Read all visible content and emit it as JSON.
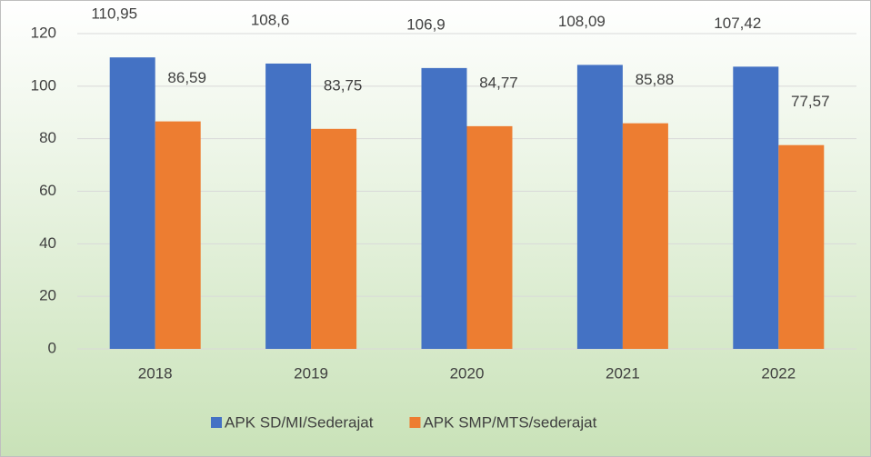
{
  "chart_data": {
    "type": "bar",
    "categories": [
      "2018",
      "2019",
      "2020",
      "2021",
      "2022"
    ],
    "series": [
      {
        "name": "APK SD/MI/Sederajat",
        "color": "#4472c4",
        "values": [
          110.95,
          108.6,
          106.9,
          108.09,
          107.42
        ],
        "value_labels": [
          "110,95",
          "108,6",
          "106,9",
          "108,09",
          "107,42"
        ]
      },
      {
        "name": "APK SMP/MTS/sederajat",
        "color": "#ed7d31",
        "values": [
          86.59,
          83.75,
          84.77,
          85.88,
          77.57
        ],
        "value_labels": [
          "86,59",
          "83,75",
          "84,77",
          "85,88",
          "77,57"
        ]
      }
    ],
    "ylim": [
      0,
      120
    ],
    "yticks": [
      0,
      20,
      40,
      60,
      80,
      100,
      120
    ],
    "grid": true,
    "legend": "bottom"
  }
}
